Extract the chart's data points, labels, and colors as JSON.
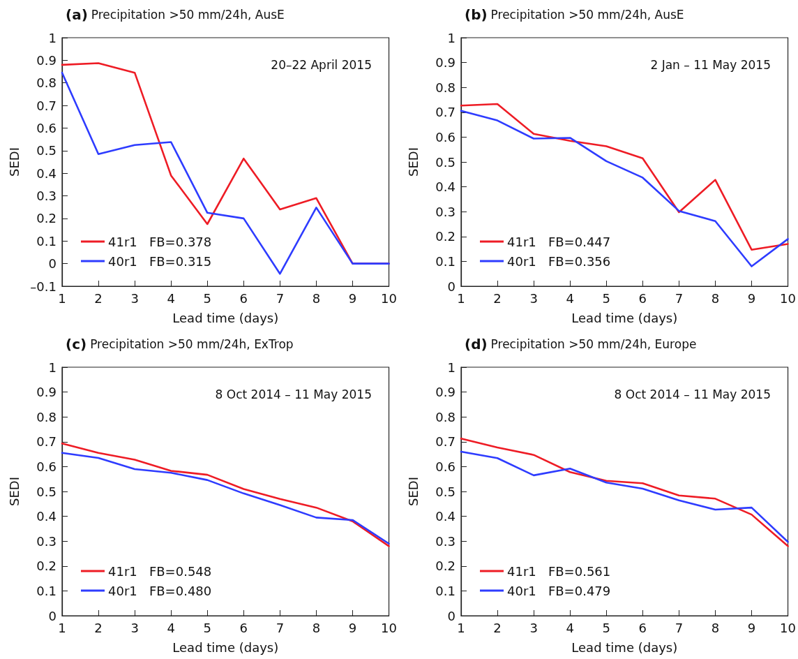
{
  "chart_data": [
    {
      "type": "line",
      "title": "(a) Precipitation >50 mm/24h, AusE",
      "xlabel": "Lead time (days)",
      "ylabel": "SEDI",
      "annotations": [
        "20–22 April 2015"
      ],
      "x": [
        1,
        2,
        3,
        4,
        5,
        6,
        7,
        8,
        9,
        10
      ],
      "xlim": [
        1,
        10
      ],
      "xticks": [
        1,
        2,
        3,
        4,
        5,
        6,
        7,
        8,
        9,
        10
      ],
      "ylim": [
        -0.1,
        1
      ],
      "yticks": [
        {
          "value": -0.1,
          "label": "–0.1"
        },
        0,
        0.1,
        0.2,
        0.3,
        0.4,
        0.5,
        0.6,
        0.7,
        0.8,
        0.9,
        1
      ],
      "legend": "bottom left",
      "line_style": "solid",
      "series": [
        {
          "name": "41r1   FB=0.378",
          "color": "#ee1c25",
          "values": [
            0.88,
            0.887,
            0.845,
            0.39,
            0.175,
            0.465,
            0.24,
            0.29,
            0,
            0
          ]
        },
        {
          "name": "40r1   FB=0.315",
          "color": "#2e3cff",
          "values": [
            0.845,
            0.485,
            0.525,
            0.538,
            0.225,
            0.2,
            -0.045,
            0.248,
            0,
            0
          ]
        }
      ]
    },
    {
      "type": "line",
      "title": "(b) Precipitation >50 mm/24h, AusE",
      "xlabel": "Lead time (days)",
      "ylabel": "SEDI",
      "annotations": [
        "2 Jan – 11 May 2015"
      ],
      "x": [
        1,
        2,
        3,
        4,
        5,
        6,
        7,
        8,
        9,
        10
      ],
      "xlim": [
        1,
        10
      ],
      "xticks": [
        1,
        2,
        3,
        4,
        5,
        6,
        7,
        8,
        9,
        10
      ],
      "ylim": [
        0,
        1
      ],
      "yticks": [
        0,
        0.1,
        0.2,
        0.3,
        0.4,
        0.5,
        0.6,
        0.7,
        0.8,
        0.9,
        1
      ],
      "legend": "bottom left",
      "line_style": "solid",
      "series": [
        {
          "name": "41r1   FB=0.447",
          "color": "#ee1c25",
          "values": [
            0.727,
            0.733,
            0.613,
            0.585,
            0.563,
            0.515,
            0.298,
            0.428,
            0.147,
            0.17
          ]
        },
        {
          "name": "40r1   FB=0.356",
          "color": "#2e3cff",
          "values": [
            0.706,
            0.667,
            0.594,
            0.597,
            0.503,
            0.437,
            0.303,
            0.262,
            0.08,
            0.19
          ]
        }
      ]
    },
    {
      "type": "line",
      "title": "(c) Precipitation >50 mm/24h, ExTrop",
      "xlabel": "Lead time (days)",
      "ylabel": "SEDI",
      "annotations": [
        "8 Oct 2014 – 11 May 2015"
      ],
      "x": [
        1,
        2,
        3,
        4,
        5,
        6,
        7,
        8,
        9,
        10
      ],
      "xlim": [
        1,
        10
      ],
      "xticks": [
        1,
        2,
        3,
        4,
        5,
        6,
        7,
        8,
        9,
        10
      ],
      "ylim": [
        0,
        1
      ],
      "yticks": [
        0,
        0.1,
        0.2,
        0.3,
        0.4,
        0.5,
        0.6,
        0.7,
        0.8,
        0.9,
        1
      ],
      "legend": "bottom left",
      "line_style": "solid",
      "series": [
        {
          "name": "41r1   FB=0.548",
          "color": "#ee1c25",
          "values": [
            0.693,
            0.655,
            0.628,
            0.583,
            0.567,
            0.51,
            0.47,
            0.435,
            0.38,
            0.28
          ]
        },
        {
          "name": "40r1   FB=0.480",
          "color": "#2e3cff",
          "values": [
            0.655,
            0.635,
            0.59,
            0.575,
            0.546,
            0.492,
            0.445,
            0.395,
            0.385,
            0.29
          ]
        }
      ]
    },
    {
      "type": "line",
      "title": "(d) Precipitation >50 mm/24h, Europe",
      "xlabel": "Lead time (days)",
      "ylabel": "SEDI",
      "annotations": [
        "8 Oct 2014 – 11 May 2015"
      ],
      "x": [
        1,
        2,
        3,
        4,
        5,
        6,
        7,
        8,
        9,
        10
      ],
      "xlim": [
        1,
        10
      ],
      "xticks": [
        1,
        2,
        3,
        4,
        5,
        6,
        7,
        8,
        9,
        10
      ],
      "ylim": [
        0,
        1
      ],
      "yticks": [
        0,
        0.1,
        0.2,
        0.3,
        0.4,
        0.5,
        0.6,
        0.7,
        0.8,
        0.9,
        1
      ],
      "legend": "bottom left",
      "line_style": "solid",
      "series": [
        {
          "name": "41r1   FB=0.561",
          "color": "#ee1c25",
          "values": [
            0.713,
            0.677,
            0.647,
            0.578,
            0.543,
            0.533,
            0.484,
            0.471,
            0.407,
            0.28
          ]
        },
        {
          "name": "40r1   FB=0.479",
          "color": "#2e3cff",
          "values": [
            0.66,
            0.634,
            0.565,
            0.592,
            0.536,
            0.511,
            0.464,
            0.427,
            0.435,
            0.297
          ]
        }
      ]
    }
  ]
}
